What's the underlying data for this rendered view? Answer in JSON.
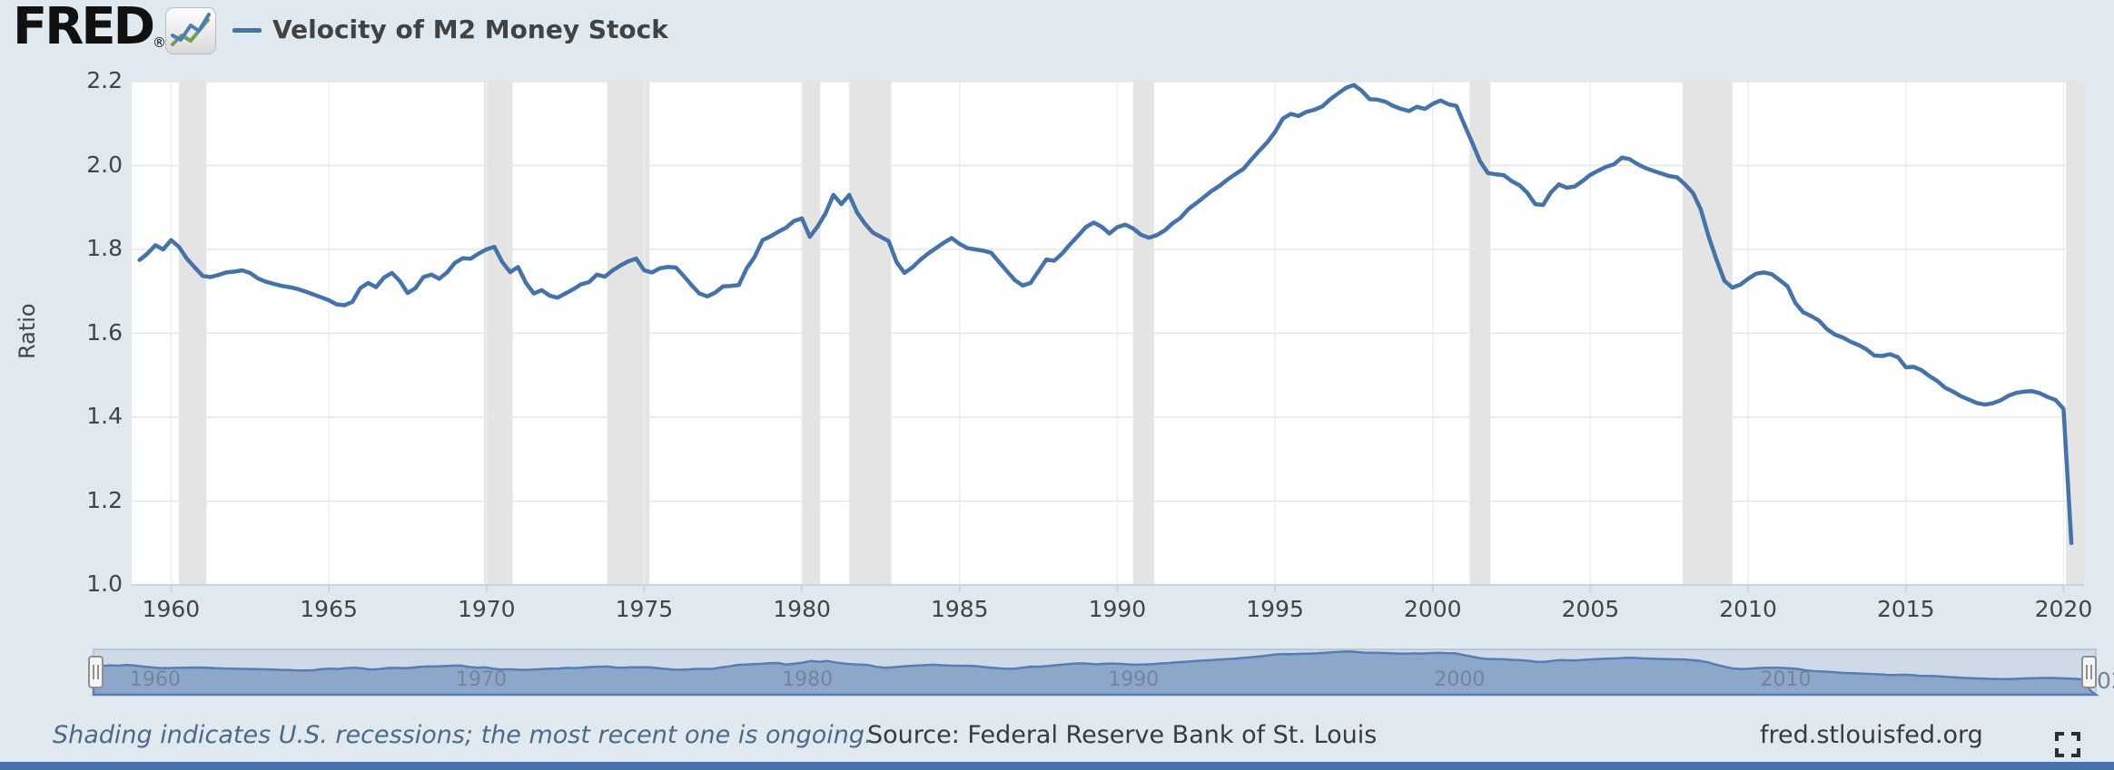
{
  "header": {
    "logo_text": "FRED",
    "registered_mark": "®",
    "legend_label": "Velocity of M2 Money Stock"
  },
  "y_axis": {
    "title": "Ratio",
    "tick_labels": [
      "2.2",
      "2.0",
      "1.8",
      "1.6",
      "1.4",
      "1.2",
      "1.0"
    ]
  },
  "x_axis": {
    "tick_labels": [
      "1960",
      "1965",
      "1970",
      "1975",
      "1980",
      "1985",
      "1990",
      "1995",
      "2000",
      "2005",
      "2010",
      "2015",
      "2020"
    ]
  },
  "navigator": {
    "decade_labels": [
      "1960",
      "1970",
      "1980",
      "1990",
      "2000",
      "2010"
    ],
    "clipped_label": "02"
  },
  "footer": {
    "note": "Shading indicates U.S. recessions; the most recent one is ongoing.",
    "source": "Source: Federal Reserve Bank of St. Louis",
    "site": "fred.stlouisfed.org"
  },
  "colors": {
    "background": "#e1e9f0",
    "plot_background": "#ffffff",
    "line": "#4572a7",
    "recession_band": "#e4e4e4",
    "h_gridline": "#e6e6e6",
    "v_gridline": "#efefef",
    "axis_line": "#c9d4e2",
    "nav_background": "#cfdae9",
    "nav_border": "#aebfd3",
    "nav_fill": "#8da7ca",
    "nav_stroke": "#587db2",
    "logo_sparkline_blue": "#4a7ebb",
    "logo_sparkline_green": "#6f9e53",
    "bottom_strip": "#4673a9",
    "icon": "#2e2e2e"
  },
  "chart_data": {
    "type": "line",
    "title": "Velocity of M2 Money Stock",
    "ylabel": "Ratio",
    "series_name": "Velocity of M2 Money Stock",
    "frequency": "quarterly",
    "x_start": 1959.0,
    "x_step": 0.25,
    "values": [
      1.775,
      1.79,
      1.81,
      1.8,
      1.822,
      1.806,
      1.778,
      1.757,
      1.737,
      1.734,
      1.739,
      1.745,
      1.747,
      1.75,
      1.744,
      1.731,
      1.723,
      1.718,
      1.713,
      1.71,
      1.706,
      1.7,
      1.693,
      1.686,
      1.679,
      1.669,
      1.667,
      1.675,
      1.708,
      1.72,
      1.71,
      1.733,
      1.744,
      1.725,
      1.696,
      1.708,
      1.734,
      1.74,
      1.73,
      1.745,
      1.768,
      1.779,
      1.778,
      1.79,
      1.8,
      1.806,
      1.77,
      1.746,
      1.758,
      1.72,
      1.695,
      1.703,
      1.69,
      1.685,
      1.695,
      1.705,
      1.717,
      1.722,
      1.74,
      1.735,
      1.75,
      1.762,
      1.772,
      1.778,
      1.75,
      1.745,
      1.755,
      1.758,
      1.757,
      1.737,
      1.715,
      1.695,
      1.688,
      1.697,
      1.712,
      1.713,
      1.715,
      1.755,
      1.782,
      1.822,
      1.831,
      1.842,
      1.852,
      1.868,
      1.874,
      1.83,
      1.855,
      1.886,
      1.93,
      1.908,
      1.93,
      1.888,
      1.861,
      1.84,
      1.83,
      1.82,
      1.77,
      1.744,
      1.757,
      1.775,
      1.79,
      1.803,
      1.816,
      1.827,
      1.813,
      1.803,
      1.8,
      1.797,
      1.792,
      1.77,
      1.748,
      1.727,
      1.714,
      1.72,
      1.748,
      1.776,
      1.773,
      1.79,
      1.812,
      1.832,
      1.853,
      1.864,
      1.854,
      1.838,
      1.853,
      1.859,
      1.85,
      1.835,
      1.828,
      1.834,
      1.845,
      1.862,
      1.875,
      1.896,
      1.91,
      1.925,
      1.94,
      1.952,
      1.967,
      1.98,
      1.992,
      2.014,
      2.035,
      2.055,
      2.08,
      2.112,
      2.123,
      2.118,
      2.128,
      2.133,
      2.141,
      2.158,
      2.172,
      2.185,
      2.192,
      2.178,
      2.158,
      2.157,
      2.152,
      2.142,
      2.135,
      2.13,
      2.14,
      2.135,
      2.147,
      2.155,
      2.146,
      2.142,
      2.098,
      2.055,
      2.01,
      1.982,
      1.979,
      1.977,
      1.963,
      1.953,
      1.935,
      1.908,
      1.906,
      1.936,
      1.955,
      1.947,
      1.95,
      1.963,
      1.978,
      1.988,
      1.997,
      2.003,
      2.019,
      2.015,
      2.003,
      1.994,
      1.987,
      1.981,
      1.975,
      1.972,
      1.955,
      1.935,
      1.895,
      1.83,
      1.775,
      1.725,
      1.709,
      1.716,
      1.73,
      1.742,
      1.745,
      1.741,
      1.727,
      1.712,
      1.672,
      1.65,
      1.641,
      1.63,
      1.61,
      1.597,
      1.59,
      1.58,
      1.572,
      1.562,
      1.547,
      1.546,
      1.55,
      1.543,
      1.519,
      1.52,
      1.512,
      1.498,
      1.486,
      1.47,
      1.461,
      1.45,
      1.442,
      1.434,
      1.43,
      1.433,
      1.44,
      1.451,
      1.458,
      1.461,
      1.462,
      1.457,
      1.448,
      1.441,
      1.42,
      1.1
    ],
    "x_plot_range": [
      1958.75,
      2020.65
    ],
    "ylim": [
      1.0,
      2.2
    ],
    "y_tick_values": [
      1.0,
      1.2,
      1.4,
      1.6,
      1.8,
      2.0,
      2.2
    ],
    "x_tick_values": [
      1960,
      1965,
      1970,
      1975,
      1980,
      1985,
      1990,
      1995,
      2000,
      2005,
      2010,
      2015,
      2020
    ],
    "grid": true,
    "legend_position": "top-left",
    "recessions": [
      [
        1960.25,
        1961.12
      ],
      [
        1969.92,
        1970.83
      ],
      [
        1973.83,
        1975.17
      ],
      [
        1980.0,
        1980.58
      ],
      [
        1981.5,
        1982.83
      ],
      [
        1990.5,
        1991.17
      ],
      [
        2001.17,
        2001.83
      ],
      [
        2007.92,
        2009.5
      ],
      [
        2020.08,
        2020.65
      ]
    ],
    "nav_x_range": [
      1959.0,
      2020.4
    ],
    "nav_y_range": [
      1.0,
      2.25
    ],
    "nav_decade_values": [
      1960,
      1970,
      1980,
      1990,
      2000,
      2010
    ]
  }
}
